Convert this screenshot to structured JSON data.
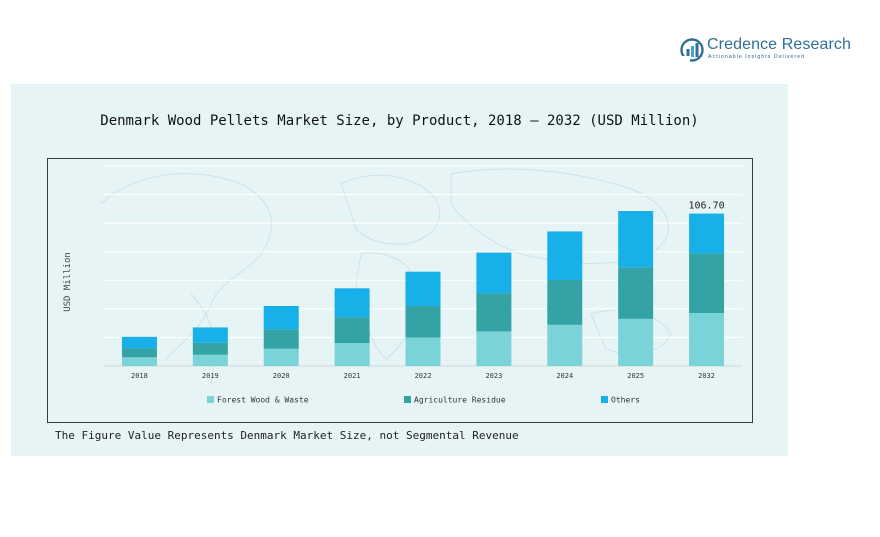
{
  "brand": {
    "name": "Credence Research",
    "tagline": "Actionable Insights Delivered"
  },
  "footnote": "The Figure Value Represents Denmark Market Size, not Segmental Revenue",
  "colors": {
    "panel_bg": "#e6f4f6",
    "forest": "#7ad3d6",
    "agriculture": "#34a3a5",
    "others": "#18b0e9",
    "brand": "#2f6f9a"
  },
  "chart_data": {
    "type": "bar",
    "stacked": true,
    "title": "Denmark Wood Pellets Market Size, by Product, 2018 – 2032 (USD Million)",
    "ylabel": "USD Million",
    "xlabel": "",
    "categories": [
      "2018",
      "2019",
      "2020",
      "2021",
      "2022",
      "2023",
      "2024",
      "2025",
      "2032"
    ],
    "series": [
      {
        "name": "Forest Wood & Waste",
        "color": "#7ad3d6",
        "values": [
          6.1,
          7.9,
          12.1,
          16.1,
          19.9,
          24.2,
          28.8,
          33.0,
          37.1
        ]
      },
      {
        "name": "Agriculture Residue",
        "color": "#34a3a5",
        "values": [
          6.4,
          8.4,
          13.6,
          18.0,
          22.1,
          26.8,
          31.4,
          36.1,
          41.8
        ]
      },
      {
        "name": "Others",
        "color": "#18b0e9",
        "values": [
          7.9,
          10.7,
          16.3,
          20.3,
          24.0,
          28.4,
          34.0,
          39.4,
          27.8
        ]
      }
    ],
    "annotations": [
      {
        "category": "2032",
        "text": "106.70"
      }
    ],
    "ylim": [
      0,
      140
    ],
    "grid": true,
    "legend_position": "bottom"
  }
}
